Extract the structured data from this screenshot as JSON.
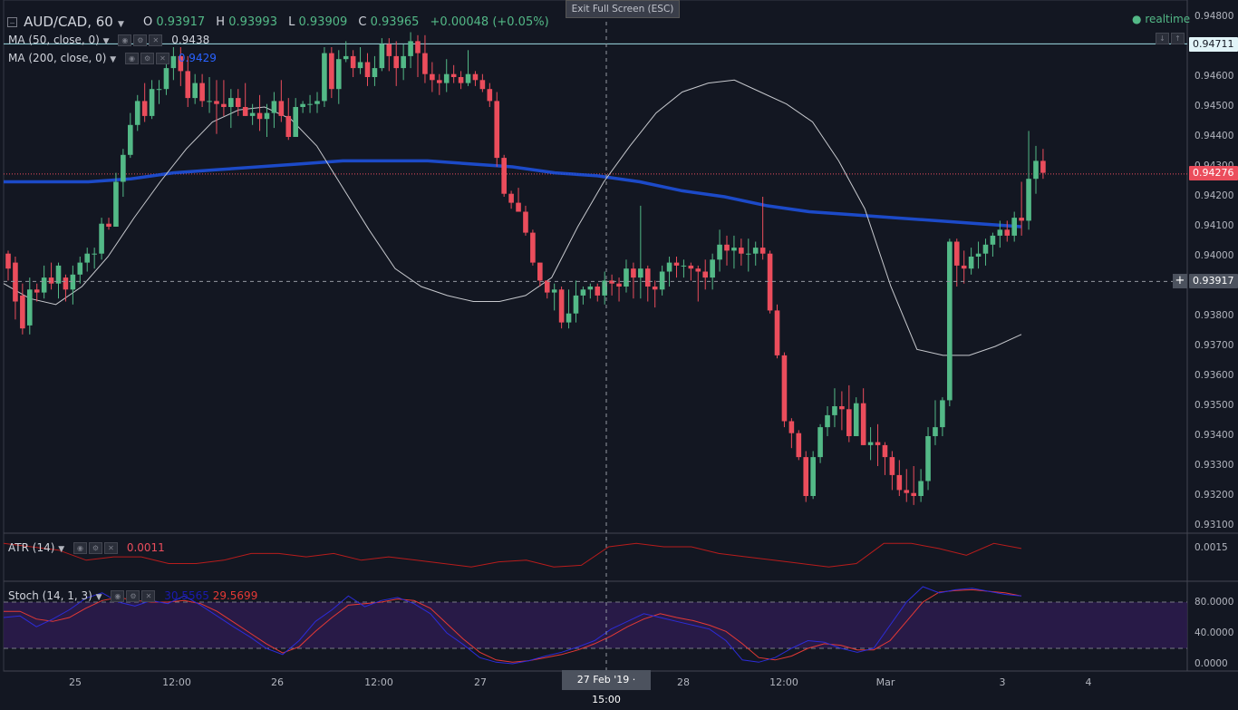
{
  "header": {
    "symbol": "AUD/CAD, 60",
    "o_label": "O",
    "o_value": "0.93917",
    "h_label": "H",
    "h_value": "0.93993",
    "l_label": "L",
    "l_value": "0.93909",
    "c_label": "C",
    "c_value": "0.93965",
    "change": "+0.00048 (+0.05%)",
    "fullscreen_button": "Exit Full Screen (ESC)",
    "realtime": "realtime"
  },
  "indicators": {
    "ma50": {
      "label": "MA (50, close, 0)",
      "value": "0.9438"
    },
    "ma200": {
      "label": "MA (200, close, 0)",
      "value": "0.9429",
      "color": "#1e53e5"
    },
    "atr": {
      "label": "ATR (14)",
      "value": "0.0011",
      "color": "#b71c1c"
    },
    "stoch": {
      "label": "Stoch (14, 1, 3)",
      "k_value": "30.5565",
      "d_value": "29.5699"
    }
  },
  "price_axis": {
    "ticks": [
      "0.94800",
      "0.94700",
      "0.94600",
      "0.94500",
      "0.94400",
      "0.94300",
      "0.94200",
      "0.94100",
      "0.94000",
      "0.93900",
      "0.93800",
      "0.93700",
      "0.93600",
      "0.93500",
      "0.93400",
      "0.93300",
      "0.93200",
      "0.93100"
    ],
    "price_tags": [
      {
        "label": "0.94711",
        "kind": "line"
      },
      {
        "label": "0.94276",
        "kind": "last"
      },
      {
        "label": "0.93917",
        "kind": "crosshair"
      }
    ],
    "atr_tick": "0.0015",
    "stoch_ticks": [
      "80.0000",
      "40.0000",
      "0.0000"
    ]
  },
  "time_axis": {
    "ticks": [
      "25",
      "12:00",
      "26",
      "12:00",
      "27",
      "28",
      "12:00",
      "Mar",
      "3",
      "4"
    ],
    "crosshair_label": "27 Feb '19 · 15:00"
  },
  "chart_data": {
    "type": "candlestick",
    "symbol": "AUD/CAD",
    "interval": "60",
    "ylim": [
      0.9308,
      0.9487
    ],
    "bull_color": "#53b987",
    "bear_color": "#eb4d5c",
    "horizontal_line": 0.94711,
    "last_price": 0.94276,
    "crosshair_price": 0.93917,
    "candles": [
      [
        0.9401,
        0.9402,
        0.9392,
        0.9396
      ],
      [
        0.9398,
        0.94,
        0.9379,
        0.9385
      ],
      [
        0.9387,
        0.9391,
        0.9374,
        0.9376
      ],
      [
        0.9377,
        0.9393,
        0.9374,
        0.9389
      ],
      [
        0.9389,
        0.9391,
        0.9385,
        0.9388
      ],
      [
        0.9388,
        0.9397,
        0.9386,
        0.9393
      ],
      [
        0.9393,
        0.9398,
        0.9389,
        0.9391
      ],
      [
        0.9391,
        0.9398,
        0.9386,
        0.9397
      ],
      [
        0.9393,
        0.9394,
        0.9385,
        0.9389
      ],
      [
        0.9389,
        0.9397,
        0.9384,
        0.9394
      ],
      [
        0.9394,
        0.94,
        0.9391,
        0.9398
      ],
      [
        0.9398,
        0.9403,
        0.9395,
        0.9401
      ],
      [
        0.9401,
        0.9403,
        0.9396,
        0.9401
      ],
      [
        0.9401,
        0.9413,
        0.9399,
        0.9411
      ],
      [
        0.9411,
        0.9413,
        0.9409,
        0.941
      ],
      [
        0.941,
        0.9428,
        0.941,
        0.9425
      ],
      [
        0.9425,
        0.9436,
        0.942,
        0.9434
      ],
      [
        0.9434,
        0.9448,
        0.9433,
        0.9444
      ],
      [
        0.9444,
        0.9454,
        0.9442,
        0.9452
      ],
      [
        0.9452,
        0.9458,
        0.9445,
        0.9447
      ],
      [
        0.9447,
        0.9459,
        0.9446,
        0.9456
      ],
      [
        0.9456,
        0.9459,
        0.9451,
        0.9456
      ],
      [
        0.9456,
        0.9465,
        0.9454,
        0.9463
      ],
      [
        0.9463,
        0.947,
        0.9459,
        0.9467
      ],
      [
        0.9467,
        0.947,
        0.9457,
        0.9462
      ],
      [
        0.9462,
        0.9467,
        0.945,
        0.9453
      ],
      [
        0.9453,
        0.9461,
        0.9451,
        0.9458
      ],
      [
        0.9458,
        0.9461,
        0.945,
        0.9452
      ],
      [
        0.9452,
        0.946,
        0.9448,
        0.9452
      ],
      [
        0.9452,
        0.9459,
        0.9441,
        0.9451
      ],
      [
        0.9451,
        0.9459,
        0.9447,
        0.945
      ],
      [
        0.945,
        0.9456,
        0.9443,
        0.9453
      ],
      [
        0.9453,
        0.9456,
        0.9447,
        0.945
      ],
      [
        0.945,
        0.9458,
        0.9447,
        0.9447
      ],
      [
        0.9447,
        0.9451,
        0.9444,
        0.9448
      ],
      [
        0.9448,
        0.9454,
        0.9442,
        0.9446
      ],
      [
        0.9446,
        0.9451,
        0.944,
        0.9448
      ],
      [
        0.9448,
        0.9455,
        0.9443,
        0.9452
      ],
      [
        0.9452,
        0.9459,
        0.9445,
        0.9447
      ],
      [
        0.9447,
        0.9453,
        0.9439,
        0.944
      ],
      [
        0.944,
        0.9453,
        0.944,
        0.945
      ],
      [
        0.945,
        0.9452,
        0.9448,
        0.9451
      ],
      [
        0.9451,
        0.9454,
        0.9448,
        0.9451
      ],
      [
        0.9451,
        0.9455,
        0.9448,
        0.9452
      ],
      [
        0.9452,
        0.947,
        0.945,
        0.9468
      ],
      [
        0.9468,
        0.947,
        0.9453,
        0.9456
      ],
      [
        0.9456,
        0.9469,
        0.9451,
        0.9466
      ],
      [
        0.9466,
        0.9472,
        0.9465,
        0.9467
      ],
      [
        0.9467,
        0.9469,
        0.946,
        0.9463
      ],
      [
        0.9463,
        0.947,
        0.9461,
        0.9465
      ],
      [
        0.9465,
        0.9468,
        0.9457,
        0.946
      ],
      [
        0.946,
        0.9467,
        0.9457,
        0.9463
      ],
      [
        0.9463,
        0.9473,
        0.9462,
        0.9471
      ],
      [
        0.9471,
        0.9473,
        0.9462,
        0.9467
      ],
      [
        0.9467,
        0.9472,
        0.9457,
        0.9463
      ],
      [
        0.9463,
        0.9471,
        0.9459,
        0.9467
      ],
      [
        0.9467,
        0.9475,
        0.9463,
        0.9472
      ],
      [
        0.9472,
        0.9474,
        0.946,
        0.9468
      ],
      [
        0.9468,
        0.9474,
        0.9458,
        0.9461
      ],
      [
        0.9461,
        0.9465,
        0.9455,
        0.9459
      ],
      [
        0.9459,
        0.9461,
        0.9454,
        0.9458
      ],
      [
        0.9458,
        0.9466,
        0.9455,
        0.9461
      ],
      [
        0.9461,
        0.9464,
        0.9458,
        0.946
      ],
      [
        0.946,
        0.9462,
        0.9456,
        0.9458
      ],
      [
        0.9458,
        0.9469,
        0.9457,
        0.9461
      ],
      [
        0.9461,
        0.9462,
        0.9457,
        0.9459
      ],
      [
        0.9459,
        0.9461,
        0.9455,
        0.9456
      ],
      [
        0.9456,
        0.9458,
        0.945,
        0.9452
      ],
      [
        0.9452,
        0.9455,
        0.943,
        0.9433
      ],
      [
        0.9433,
        0.9434,
        0.942,
        0.9421
      ],
      [
        0.9421,
        0.9422,
        0.9416,
        0.9418
      ],
      [
        0.9418,
        0.9423,
        0.9416,
        0.9415
      ],
      [
        0.9415,
        0.9417,
        0.9407,
        0.9408
      ],
      [
        0.9408,
        0.9409,
        0.9397,
        0.9398
      ],
      [
        0.9398,
        0.9398,
        0.939,
        0.9392
      ],
      [
        0.9392,
        0.9392,
        0.9386,
        0.9388
      ],
      [
        0.9388,
        0.9391,
        0.9382,
        0.9389
      ],
      [
        0.9389,
        0.939,
        0.9376,
        0.9378
      ],
      [
        0.9378,
        0.9389,
        0.9376,
        0.9381
      ],
      [
        0.9381,
        0.9392,
        0.9378,
        0.9387
      ],
      [
        0.9387,
        0.939,
        0.9384,
        0.9389
      ],
      [
        0.9389,
        0.9391,
        0.9386,
        0.939
      ],
      [
        0.939,
        0.9391,
        0.9385,
        0.9387
      ],
      [
        0.9387,
        0.9395,
        0.9384,
        0.9392
      ],
      [
        0.9392,
        0.9394,
        0.9387,
        0.9391
      ],
      [
        0.9391,
        0.9393,
        0.9385,
        0.939
      ],
      [
        0.939,
        0.9399,
        0.9388,
        0.9396
      ],
      [
        0.9396,
        0.9398,
        0.9386,
        0.9393
      ],
      [
        0.9393,
        0.9417,
        0.9386,
        0.9396
      ],
      [
        0.9396,
        0.9397,
        0.9385,
        0.939
      ],
      [
        0.939,
        0.9392,
        0.9383,
        0.9389
      ],
      [
        0.9389,
        0.9397,
        0.9387,
        0.9395
      ],
      [
        0.9395,
        0.94,
        0.939,
        0.9398
      ],
      [
        0.9398,
        0.94,
        0.9393,
        0.9397
      ],
      [
        0.9397,
        0.9399,
        0.9393,
        0.9397
      ],
      [
        0.9397,
        0.9398,
        0.9392,
        0.9396
      ],
      [
        0.9396,
        0.9397,
        0.9385,
        0.9395
      ],
      [
        0.9395,
        0.9399,
        0.9389,
        0.9393
      ],
      [
        0.9393,
        0.9401,
        0.9389,
        0.9399
      ],
      [
        0.9399,
        0.9409,
        0.9395,
        0.9404
      ],
      [
        0.9404,
        0.9407,
        0.9397,
        0.9402
      ],
      [
        0.9402,
        0.9407,
        0.9396,
        0.9403
      ],
      [
        0.9403,
        0.9406,
        0.9397,
        0.9401
      ],
      [
        0.9401,
        0.9406,
        0.9395,
        0.9401
      ],
      [
        0.9401,
        0.9405,
        0.9397,
        0.9403
      ],
      [
        0.9403,
        0.942,
        0.9399,
        0.9401
      ],
      [
        0.9401,
        0.9402,
        0.9381,
        0.9382
      ],
      [
        0.9382,
        0.9384,
        0.9366,
        0.9367
      ],
      [
        0.9367,
        0.9368,
        0.9343,
        0.9345
      ],
      [
        0.9345,
        0.9346,
        0.9336,
        0.9341
      ],
      [
        0.9341,
        0.9342,
        0.9332,
        0.9333
      ],
      [
        0.9333,
        0.9335,
        0.9318,
        0.932
      ],
      [
        0.932,
        0.9335,
        0.9319,
        0.9333
      ],
      [
        0.9333,
        0.9344,
        0.9331,
        0.9343
      ],
      [
        0.9343,
        0.935,
        0.934,
        0.9347
      ],
      [
        0.9347,
        0.9356,
        0.9343,
        0.935
      ],
      [
        0.935,
        0.9355,
        0.9342,
        0.9349
      ],
      [
        0.9349,
        0.9357,
        0.9338,
        0.934
      ],
      [
        0.934,
        0.9353,
        0.934,
        0.9351
      ],
      [
        0.9351,
        0.9356,
        0.9337,
        0.9337
      ],
      [
        0.9337,
        0.9343,
        0.9332,
        0.9338
      ],
      [
        0.9338,
        0.9344,
        0.933,
        0.9337
      ],
      [
        0.9337,
        0.9338,
        0.9327,
        0.9333
      ],
      [
        0.9333,
        0.9335,
        0.9322,
        0.9327
      ],
      [
        0.9327,
        0.9332,
        0.932,
        0.9322
      ],
      [
        0.9322,
        0.9329,
        0.9318,
        0.9321
      ],
      [
        0.9321,
        0.933,
        0.9317,
        0.932
      ],
      [
        0.932,
        0.9329,
        0.9318,
        0.9325
      ],
      [
        0.9325,
        0.9343,
        0.9322,
        0.934
      ],
      [
        0.934,
        0.9352,
        0.9337,
        0.9343
      ],
      [
        0.9343,
        0.9353,
        0.934,
        0.9352
      ],
      [
        0.9352,
        0.9406,
        0.935,
        0.9405
      ],
      [
        0.9405,
        0.9406,
        0.939,
        0.9397
      ],
      [
        0.9397,
        0.9402,
        0.9391,
        0.9396
      ],
      [
        0.9396,
        0.9403,
        0.9394,
        0.94
      ],
      [
        0.94,
        0.9405,
        0.9396,
        0.9401
      ],
      [
        0.9401,
        0.9406,
        0.9397,
        0.9404
      ],
      [
        0.9404,
        0.9408,
        0.94,
        0.9407
      ],
      [
        0.9407,
        0.9412,
        0.9403,
        0.9409
      ],
      [
        0.9409,
        0.9412,
        0.9405,
        0.9407
      ],
      [
        0.9407,
        0.9415,
        0.9405,
        0.9413
      ],
      [
        0.9413,
        0.9425,
        0.9407,
        0.9412
      ],
      [
        0.9412,
        0.9442,
        0.9409,
        0.9426
      ],
      [
        0.9426,
        0.9437,
        0.9421,
        0.9432
      ],
      [
        0.9432,
        0.9436,
        0.9426,
        0.9428
      ]
    ],
    "ma50": [
      0.9391,
      0.9386,
      0.9384,
      0.939,
      0.94,
      0.9413,
      0.9425,
      0.9436,
      0.9445,
      0.9449,
      0.945,
      0.9446,
      0.9437,
      0.9423,
      0.9409,
      0.9396,
      0.939,
      0.9387,
      0.9385,
      0.9385,
      0.9387,
      0.9393,
      0.941,
      0.9425,
      0.9437,
      0.9448,
      0.9455,
      0.9458,
      0.9459,
      0.9455,
      0.9451,
      0.9445,
      0.9432,
      0.9416,
      0.939,
      0.9369,
      0.9367,
      0.9367,
      0.937,
      0.9374
    ],
    "ma200": [
      0.9425,
      0.9425,
      0.9425,
      0.9426,
      0.9428,
      0.9429,
      0.943,
      0.9431,
      0.9432,
      0.9432,
      0.9432,
      0.9431,
      0.943,
      0.9428,
      0.9427,
      0.9425,
      0.9422,
      0.942,
      0.9417,
      0.9415,
      0.9414,
      0.9413,
      0.9412,
      0.9411,
      0.941
    ],
    "atr": [
      0.0016,
      0.0015,
      0.0014,
      0.0011,
      0.0012,
      0.0012,
      0.001,
      0.001,
      0.0011,
      0.0013,
      0.0013,
      0.0012,
      0.0013,
      0.0011,
      0.0012,
      0.0011,
      0.001,
      0.0009,
      0.00105,
      0.0011,
      0.0009,
      0.00095,
      0.0015,
      0.0016,
      0.0015,
      0.0015,
      0.0013,
      0.0012,
      0.0011,
      0.001,
      0.0009,
      0.001,
      0.0016,
      0.0016,
      0.00145,
      0.00125,
      0.0016,
      0.00145
    ],
    "stoch_k": [
      60,
      62,
      48,
      58,
      70,
      85,
      92,
      80,
      75,
      82,
      78,
      88,
      76,
      62,
      48,
      35,
      20,
      12,
      30,
      55,
      70,
      88,
      74,
      82,
      86,
      78,
      65,
      40,
      25,
      8,
      2,
      0,
      4,
      10,
      15,
      22,
      30,
      45,
      55,
      65,
      60,
      55,
      50,
      45,
      30,
      5,
      2,
      8,
      20,
      30,
      28,
      20,
      15,
      20,
      50,
      80,
      100,
      92,
      96,
      98,
      94,
      90,
      88
    ],
    "stoch_d": [
      68,
      68,
      58,
      55,
      60,
      72,
      82,
      86,
      82,
      80,
      80,
      82,
      78,
      68,
      54,
      40,
      26,
      14,
      22,
      42,
      60,
      76,
      78,
      80,
      84,
      82,
      72,
      52,
      32,
      15,
      5,
      2,
      4,
      8,
      12,
      18,
      26,
      36,
      48,
      58,
      65,
      60,
      56,
      50,
      42,
      26,
      8,
      5,
      10,
      20,
      26,
      24,
      18,
      18,
      30,
      55,
      80,
      93,
      95,
      96,
      94,
      92,
      88
    ]
  }
}
